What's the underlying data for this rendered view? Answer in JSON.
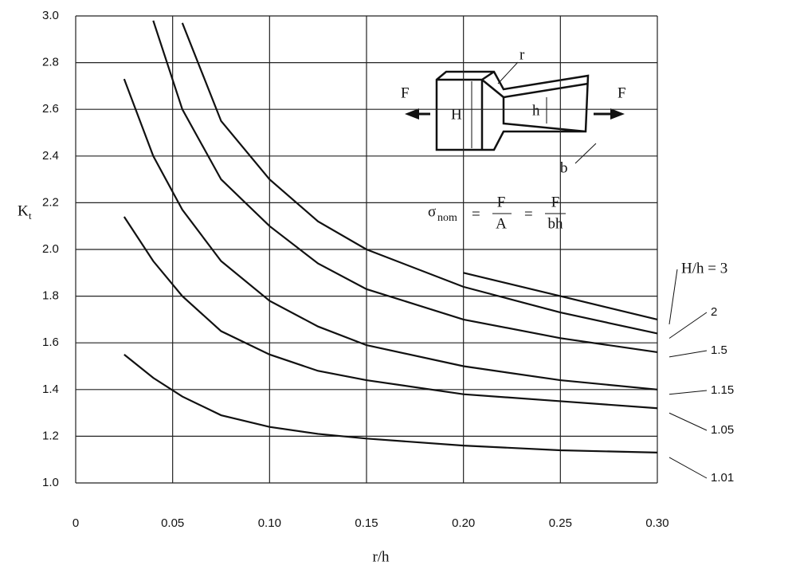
{
  "chart_data": {
    "type": "line",
    "y_label": "K",
    "y_label_sub": "t",
    "x_label": "r/h",
    "x": [
      0.025,
      0.04,
      0.055,
      0.075,
      0.1,
      0.125,
      0.15,
      0.2,
      0.25,
      0.3
    ],
    "series": [
      {
        "name": "H/h  =  3",
        "color": "#111111",
        "values": [
          null,
          null,
          null,
          null,
          null,
          null,
          null,
          1.9,
          1.8,
          1.7
        ]
      },
      {
        "name": "2",
        "color": "#111111",
        "values": [
          null,
          null,
          2.97,
          2.55,
          2.3,
          2.12,
          2.0,
          1.84,
          1.73,
          1.64
        ]
      },
      {
        "name": "1.5",
        "color": "#111111",
        "values": [
          null,
          2.98,
          2.6,
          2.3,
          2.1,
          1.94,
          1.83,
          1.7,
          1.62,
          1.56
        ]
      },
      {
        "name": "1.15",
        "color": "#111111",
        "values": [
          2.73,
          2.4,
          2.17,
          1.95,
          1.78,
          1.67,
          1.59,
          1.5,
          1.44,
          1.4
        ]
      },
      {
        "name": "1.05",
        "color": "#111111",
        "values": [
          2.14,
          1.95,
          1.8,
          1.65,
          1.55,
          1.48,
          1.44,
          1.38,
          1.35,
          1.32
        ]
      },
      {
        "name": "1.01",
        "color": "#111111",
        "values": [
          1.55,
          1.45,
          1.37,
          1.29,
          1.24,
          1.21,
          1.19,
          1.16,
          1.14,
          1.13
        ]
      }
    ],
    "xlim": [
      0,
      0.3
    ],
    "ylim": [
      1.0,
      3.0
    ],
    "xticks": [
      0,
      {
        "value": 0.05,
        "label": "0.05"
      },
      {
        "value": 0.1,
        "label": "0.10"
      },
      {
        "value": 0.15,
        "label": "0.15"
      },
      {
        "value": 0.2,
        "label": "0.20"
      },
      {
        "value": 0.25,
        "label": "0.25"
      },
      {
        "value": 0.3,
        "label": "0.30"
      }
    ],
    "yticks": [
      {
        "value": 1.0,
        "label": "1.0"
      },
      1.2,
      1.4,
      1.6,
      1.8,
      {
        "value": 2.0,
        "label": "2.0"
      },
      2.2,
      2.4,
      2.6,
      2.8,
      {
        "value": 3.0,
        "label": "3.0"
      }
    ],
    "grid": true,
    "inset": {
      "force_left": "F",
      "force_right": "F",
      "height_big": "H",
      "height_small": "h",
      "radius": "r",
      "thickness": "b",
      "formula": {
        "sigma": "σ",
        "sigma_sub": "nom",
        "num1": "F",
        "den1": "A",
        "num2": "F",
        "den2": "bh",
        "eq": "="
      }
    }
  }
}
